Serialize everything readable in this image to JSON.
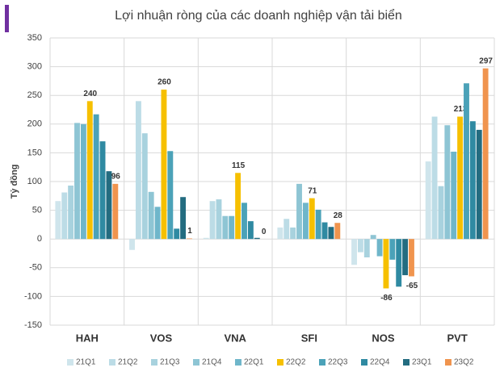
{
  "chart_data": {
    "type": "bar",
    "title": "Lợi nhuận ròng của các doanh nghiệp vận tải biển",
    "y_label": "Tỷ đồng",
    "categories": [
      "HAH",
      "VOS",
      "VNA",
      "SFI",
      "NOS",
      "PVT"
    ],
    "ylim": [
      -150,
      350
    ],
    "yticks": [
      -150,
      -100,
      -50,
      0,
      50,
      100,
      150,
      200,
      250,
      300,
      350
    ],
    "grid": true,
    "legend": "bottom",
    "series": [
      {
        "name": "21Q1",
        "color": "#cfe5ec",
        "values": [
          66,
          -19,
          2,
          20,
          -45,
          135
        ]
      },
      {
        "name": "21Q2",
        "color": "#bcdce6",
        "values": [
          81,
          240,
          66,
          35,
          -23,
          213
        ]
      },
      {
        "name": "21Q3",
        "color": "#a8d2de",
        "values": [
          93,
          184,
          69,
          20,
          -32,
          92
        ]
      },
      {
        "name": "21Q4",
        "color": "#8ec5d4",
        "values": [
          202,
          82,
          40,
          96,
          7,
          198
        ]
      },
      {
        "name": "22Q1",
        "color": "#6fb6ca",
        "values": [
          200,
          56,
          40,
          63,
          -30,
          152
        ]
      },
      {
        "name": "22Q2",
        "color": "#f6c000",
        "values": [
          240,
          260,
          115,
          71,
          -86,
          213
        ],
        "show_labels": true
      },
      {
        "name": "22Q3",
        "color": "#4ba2b8",
        "values": [
          217,
          153,
          63,
          51,
          -36,
          271
        ]
      },
      {
        "name": "22Q4",
        "color": "#2f8aa2",
        "values": [
          170,
          18,
          31,
          29,
          -83,
          205
        ]
      },
      {
        "name": "23Q1",
        "color": "#236c80",
        "values": [
          118,
          73,
          2,
          21,
          -63,
          190
        ]
      },
      {
        "name": "23Q2",
        "color": "#f0944e",
        "values": [
          96,
          1,
          0,
          28,
          -65,
          297
        ],
        "show_labels": true
      }
    ]
  }
}
